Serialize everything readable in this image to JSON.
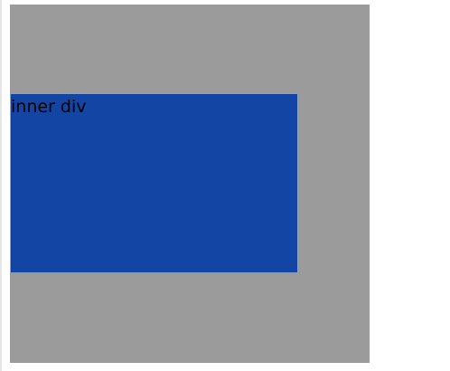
{
  "page": {
    "background_color": "#ffffff"
  },
  "outer_div": {
    "background_color": "#9b9b9b"
  },
  "inner_div": {
    "label": "inner div",
    "background_color": "#1346a4",
    "text_color": "#000000"
  }
}
